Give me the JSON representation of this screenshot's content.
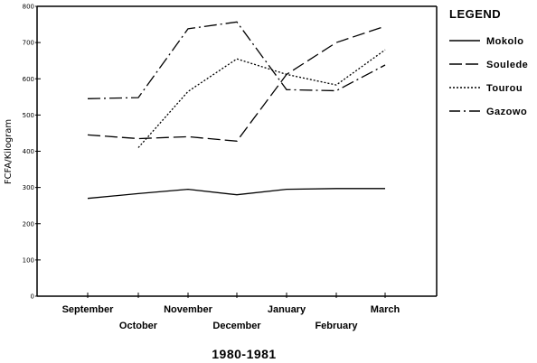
{
  "chart_data": {
    "type": "line",
    "title": "",
    "xlabel": "1980-1981",
    "ylabel": "FCFA/Kilogram",
    "categories": [
      "September",
      "October",
      "November",
      "December",
      "January",
      "February",
      "March"
    ],
    "ylim": [
      0,
      800
    ],
    "yticks": [
      0,
      100,
      200,
      300,
      400,
      500,
      600,
      700,
      800
    ],
    "grid": false,
    "legend_title": "LEGEND",
    "legend_position": "right",
    "series": [
      {
        "name": "Mokolo",
        "style": "solid",
        "values": [
          270,
          283,
          295,
          280,
          295,
          297,
          297
        ]
      },
      {
        "name": "Soulede",
        "style": "dashed",
        "values": [
          445,
          435,
          440,
          428,
          612,
          700,
          745
        ]
      },
      {
        "name": "Tourou",
        "style": "dotted",
        "values": [
          null,
          410,
          565,
          655,
          612,
          583,
          680
        ]
      },
      {
        "name": "Gazowo",
        "style": "dashdot",
        "values": [
          545,
          548,
          738,
          757,
          570,
          567,
          638
        ]
      }
    ]
  }
}
